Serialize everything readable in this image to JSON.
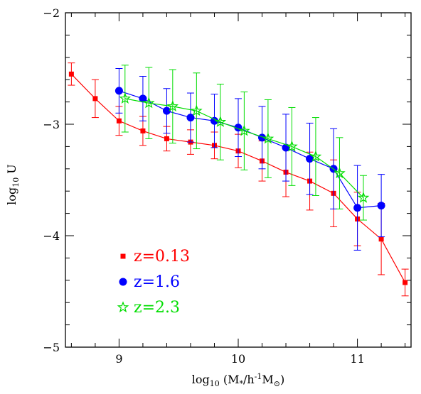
{
  "chart_data": {
    "type": "scatter",
    "xlabel": {
      "prefix": "log",
      "sub": "10",
      "rest": " (M",
      "star": "*",
      "mid": "/h",
      "sup": "-1",
      "m": "M",
      "sun": "⊙",
      "close": ")"
    },
    "ylabel": {
      "prefix": "log",
      "sub": "10",
      "rest": " U"
    },
    "xlim": [
      8.55,
      11.45
    ],
    "ylim": [
      -5,
      -2
    ],
    "x_ticks": [
      9,
      10,
      11
    ],
    "x_tick_labels": [
      "9",
      "10",
      "11"
    ],
    "y_ticks": [
      -5,
      -4,
      -3,
      -2
    ],
    "y_tick_labels": [
      "−5",
      "−4",
      "−3",
      "−2"
    ],
    "grid": false,
    "legend_position": "bottom-left",
    "series": [
      {
        "name": "z=0.13",
        "color": "#ff0000",
        "marker": "square",
        "x": [
          8.6,
          8.8,
          9.0,
          9.2,
          9.4,
          9.6,
          9.8,
          10.0,
          10.2,
          10.4,
          10.6,
          10.8,
          11.0,
          11.2,
          11.4
        ],
        "y": [
          -2.55,
          -2.77,
          -2.97,
          -3.06,
          -3.13,
          -3.16,
          -3.19,
          -3.24,
          -3.33,
          -3.43,
          -3.51,
          -3.62,
          -3.85,
          -4.03,
          -4.42
        ],
        "err": [
          0.1,
          0.17,
          0.13,
          0.13,
          0.11,
          0.11,
          0.12,
          0.15,
          0.18,
          0.22,
          0.26,
          0.3,
          0.24,
          0.32,
          0.12
        ]
      },
      {
        "name": "z=1.6",
        "color": "#0000ff",
        "marker": "circle",
        "x": [
          9.0,
          9.2,
          9.4,
          9.6,
          9.8,
          10.0,
          10.2,
          10.4,
          10.6,
          10.8,
          11.0,
          11.2
        ],
        "y": [
          -2.7,
          -2.77,
          -2.88,
          -2.94,
          -2.97,
          -3.03,
          -3.12,
          -3.21,
          -3.31,
          -3.4,
          -3.75,
          -3.73
        ],
        "err": [
          0.2,
          0.2,
          0.2,
          0.22,
          0.24,
          0.26,
          0.28,
          0.3,
          0.32,
          0.36,
          0.38,
          0.28
        ]
      },
      {
        "name": "z=2.3",
        "color": "#00dd00",
        "marker": "star",
        "x": [
          9.05,
          9.25,
          9.45,
          9.65,
          9.85,
          10.05,
          10.25,
          10.45,
          10.65,
          10.85,
          11.05
        ],
        "y": [
          -2.77,
          -2.81,
          -2.84,
          -2.88,
          -2.98,
          -3.06,
          -3.13,
          -3.2,
          -3.29,
          -3.44,
          -3.66
        ],
        "err": [
          0.3,
          0.32,
          0.33,
          0.34,
          0.34,
          0.35,
          0.35,
          0.35,
          0.35,
          0.32,
          0.2
        ]
      }
    ]
  }
}
